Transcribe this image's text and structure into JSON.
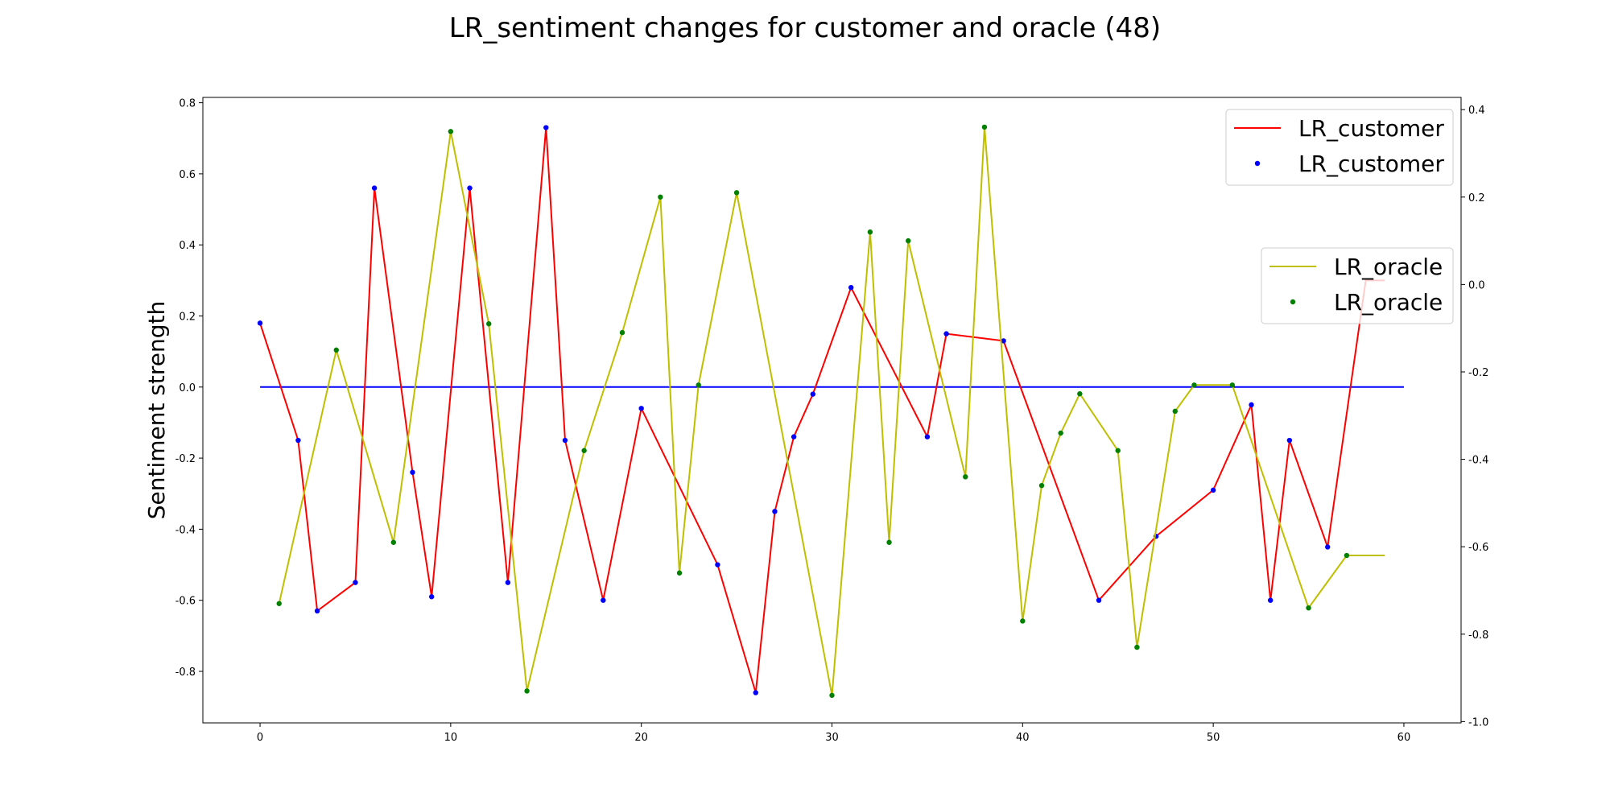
{
  "chart_data": {
    "type": "line",
    "title": "LR_sentiment changes for customer and oracle (48)",
    "xlabel": "",
    "ylabel": "Sentiment strength",
    "xlim": [
      -3,
      63
    ],
    "xticks": [
      0,
      10,
      20,
      30,
      40,
      50,
      60
    ],
    "left_axis": {
      "ylim": [
        -0.945,
        0.815
      ],
      "ticks": [
        -0.8,
        -0.6,
        -0.4,
        -0.2,
        0.0,
        0.2,
        0.4,
        0.6,
        0.8
      ],
      "tick_labels": [
        "-0.8",
        "-0.6",
        "-0.4",
        "-0.2",
        "0.0",
        "0.2",
        "0.4",
        "0.6",
        "0.8"
      ]
    },
    "right_axis": {
      "ylim": [
        -1.003,
        0.428
      ],
      "ticks": [
        -1.0,
        -0.8,
        -0.6,
        -0.4,
        -0.2,
        0.0,
        0.2,
        0.4
      ],
      "tick_labels": [
        "-1.0",
        "-0.8",
        "-0.6",
        "-0.4",
        "-0.2",
        "0.0",
        "0.2",
        "0.4"
      ]
    },
    "zero_line": {
      "x": [
        0,
        60
      ],
      "y": 0.0,
      "color": "#0000ff"
    },
    "series": [
      {
        "name": "LR_customer",
        "axis": "left",
        "color": "#ff0000",
        "marker_color": "#0000ff",
        "x": [
          0,
          2,
          3,
          5,
          6,
          8,
          9,
          11,
          13,
          15,
          16,
          18,
          20,
          24,
          26,
          27,
          28,
          29,
          31,
          35,
          36,
          39,
          44,
          47,
          50,
          52,
          53,
          54,
          56,
          58,
          59
        ],
        "y": [
          0.18,
          -0.15,
          -0.63,
          -0.55,
          0.56,
          -0.24,
          -0.59,
          0.56,
          -0.55,
          0.73,
          -0.15,
          -0.6,
          -0.06,
          -0.5,
          -0.86,
          -0.35,
          -0.14,
          -0.02,
          0.28,
          -0.14,
          0.15,
          0.13,
          -0.6,
          -0.42,
          -0.29,
          -0.05,
          -0.6,
          -0.15,
          -0.45,
          0.3,
          0.3
        ],
        "markers": [
          true,
          true,
          true,
          true,
          true,
          true,
          true,
          true,
          true,
          true,
          true,
          true,
          true,
          true,
          true,
          true,
          true,
          true,
          true,
          true,
          true,
          true,
          true,
          true,
          true,
          true,
          true,
          true,
          true,
          false,
          false
        ]
      },
      {
        "name": "LR_oracle",
        "axis": "right",
        "color": "#bfbf00",
        "marker_color": "#008000",
        "x": [
          1,
          4,
          7,
          10,
          12,
          14,
          17,
          19,
          21,
          22,
          23,
          25,
          30,
          32,
          33,
          34,
          37,
          38,
          40,
          41,
          42,
          43,
          45,
          46,
          48,
          49,
          51,
          55,
          57,
          59
        ],
        "y": [
          -0.73,
          -0.15,
          -0.59,
          0.35,
          -0.09,
          -0.93,
          -0.38,
          -0.11,
          0.2,
          -0.66,
          -0.23,
          0.21,
          -0.94,
          0.12,
          -0.59,
          0.1,
          -0.44,
          0.36,
          -0.77,
          -0.46,
          -0.34,
          -0.25,
          -0.38,
          -0.83,
          -0.29,
          -0.23,
          -0.23,
          -0.74,
          -0.62,
          -0.62
        ],
        "markers": [
          true,
          true,
          true,
          true,
          true,
          true,
          true,
          true,
          true,
          true,
          true,
          true,
          true,
          true,
          true,
          true,
          true,
          true,
          true,
          true,
          true,
          true,
          true,
          true,
          true,
          true,
          true,
          true,
          true,
          false
        ]
      }
    ],
    "legends": [
      {
        "placement": "top-right",
        "entries": [
          {
            "label": "LR_customer",
            "kind": "line",
            "color": "#ff0000"
          },
          {
            "label": "LR_customer",
            "kind": "marker",
            "color": "#0000ff"
          }
        ]
      },
      {
        "placement": "center-right",
        "entries": [
          {
            "label": "LR_oracle",
            "kind": "line",
            "color": "#bfbf00"
          },
          {
            "label": "LR_oracle",
            "kind": "marker",
            "color": "#008000"
          }
        ]
      }
    ]
  }
}
